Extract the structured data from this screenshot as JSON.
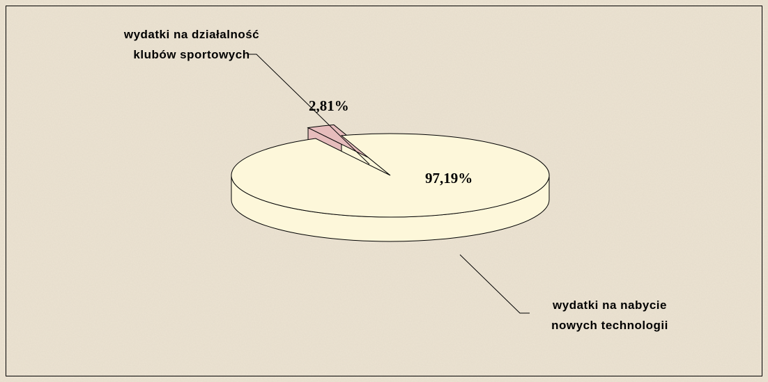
{
  "chart_data": {
    "type": "pie3d",
    "categories": [
      "wydatki na działalność klubów sportowych",
      "wydatki na nabycie nowych technologii"
    ],
    "values": [
      2.81,
      97.19
    ],
    "value_labels": [
      "2,81%",
      "97,19%"
    ],
    "colors": [
      "#e6bcbc",
      "#fdf7da"
    ]
  }
}
